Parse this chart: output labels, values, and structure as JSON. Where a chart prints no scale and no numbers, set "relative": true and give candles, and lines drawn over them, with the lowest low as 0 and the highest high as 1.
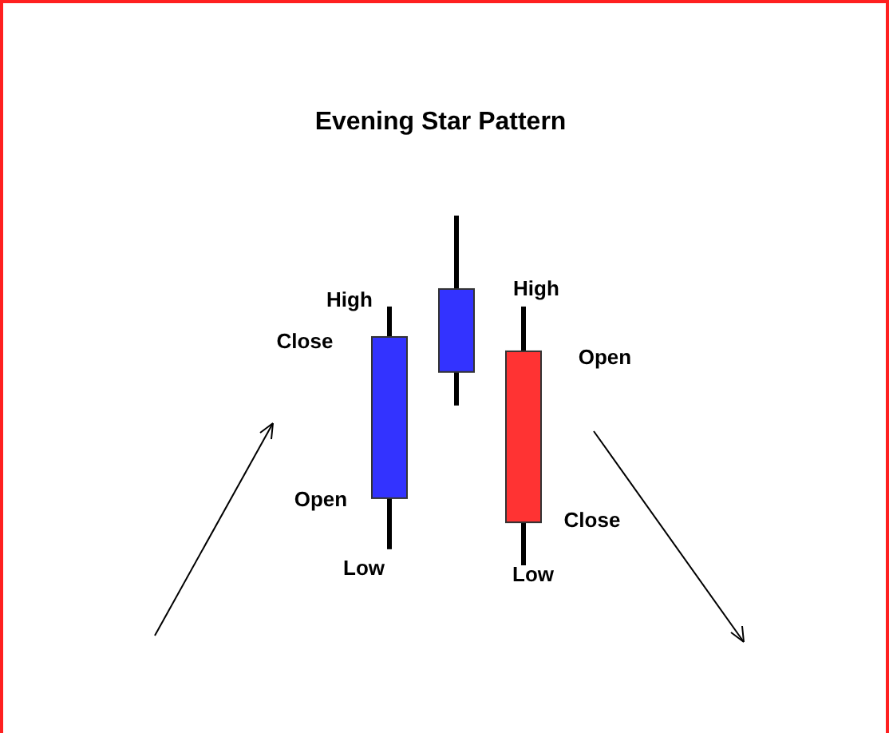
{
  "chart_data": {
    "type": "candlestick",
    "title": "Evening Star Pattern",
    "relative": true,
    "categories": [
      null,
      null,
      null
    ],
    "ohlc": [
      [
        0.192,
        0.74,
        0.046,
        0.653
      ],
      [
        0.553,
        1,
        0.457,
        0.79
      ],
      [
        0.612,
        0.74,
        0,
        0.123
      ]
    ],
    "colors": [
      "#3333ff",
      "#3333ff",
      "#ff3333"
    ],
    "annotations": [
      "High",
      "Close",
      "Open",
      "Low",
      "High",
      "Open",
      "Close",
      "Low"
    ]
  }
}
